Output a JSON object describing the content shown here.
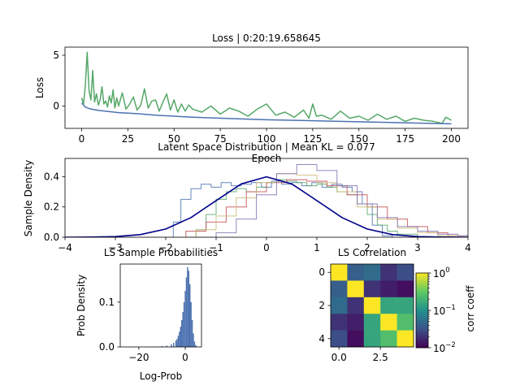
{
  "chart_data": [
    {
      "type": "line",
      "title": "Loss | 0:20:19.658645",
      "xlabel": "Epoch",
      "ylabel": "Loss",
      "xlim": [
        -9,
        209
      ],
      "ylim": [
        -2.2,
        5.8
      ],
      "xticks": [
        "0",
        "25",
        "50",
        "75",
        "100",
        "125",
        "150",
        "175",
        "200"
      ],
      "yticks": [
        "0",
        "5"
      ],
      "grid": false,
      "series": [
        {
          "color": "#4c72b0",
          "x": [
            0,
            2,
            5,
            10,
            15,
            20,
            30,
            40,
            50,
            60,
            75,
            100,
            125,
            150,
            175,
            200
          ],
          "values": [
            0.3,
            -0.1,
            -0.3,
            -0.45,
            -0.55,
            -0.65,
            -0.75,
            -0.9,
            -1.0,
            -1.1,
            -1.2,
            -1.35,
            -1.45,
            -1.55,
            -1.65,
            -1.75
          ]
        },
        {
          "color": "#55a868",
          "x": [
            0,
            1,
            2,
            3,
            4,
            5,
            6,
            7,
            8,
            9,
            10,
            11,
            12,
            13,
            14,
            15,
            16,
            17,
            18,
            19,
            20,
            22,
            24,
            26,
            28,
            30,
            32,
            34,
            36,
            38,
            40,
            42,
            44,
            46,
            48,
            50,
            52,
            54,
            56,
            58,
            60,
            65,
            70,
            75,
            80,
            85,
            90,
            95,
            100,
            105,
            110,
            115,
            120,
            123,
            125,
            127,
            130,
            135,
            140,
            145,
            150,
            155,
            160,
            165,
            170,
            175,
            180,
            185,
            190,
            195,
            197,
            200
          ],
          "values": [
            0.8,
            0.2,
            2.0,
            5.3,
            1.5,
            0.6,
            3.5,
            0.4,
            1.2,
            0.1,
            0.6,
            1.9,
            0.2,
            0.5,
            -0.1,
            1.0,
            0.3,
            1.6,
            -0.2,
            0.8,
            0.0,
            1.3,
            -0.3,
            0.2,
            0.9,
            -0.4,
            0.1,
            1.7,
            -0.2,
            0.5,
            0.6,
            -0.5,
            0.4,
            1.2,
            -0.4,
            0.6,
            -0.6,
            0.2,
            -0.5,
            0.1,
            -0.3,
            -0.6,
            0.0,
            -0.8,
            -0.2,
            -0.5,
            -1.0,
            -0.3,
            0.2,
            -0.9,
            -0.6,
            -1.1,
            -0.4,
            -1.2,
            0.2,
            -1.0,
            -0.9,
            -1.3,
            -0.5,
            -1.2,
            -1.0,
            -1.4,
            -0.8,
            -1.3,
            -1.0,
            -1.5,
            -1.2,
            -1.4,
            -1.5,
            -1.7,
            -1.1,
            -1.4
          ]
        }
      ]
    },
    {
      "type": "line",
      "title": "Latent Space Distribution | Mean KL = 0.077",
      "xlabel": "",
      "ylabel": "Sample Density",
      "xlim": [
        -4,
        4
      ],
      "ylim": [
        0,
        0.52
      ],
      "xticks": [
        "−4",
        "−3",
        "−2",
        "−1",
        "0",
        "1",
        "2",
        "3",
        "4"
      ],
      "yticks": [
        "0.0",
        "0.2",
        "0.4"
      ],
      "grid": false,
      "series": [
        {
          "color": "#4c72b0",
          "style": "step",
          "x": [
            -4,
            -2.0,
            -1.85,
            -1.7,
            -1.5,
            -1.3,
            -1.1,
            -0.9,
            -0.7,
            -0.5,
            -0.3,
            -0.1,
            0.1,
            0.3,
            0.5,
            0.7,
            0.9,
            1.1,
            1.3,
            1.5,
            1.7,
            1.9,
            2.1,
            2.3,
            2.5,
            4
          ],
          "values": [
            0,
            0,
            0.1,
            0.25,
            0.32,
            0.35,
            0.33,
            0.36,
            0.34,
            0.35,
            0.36,
            0.33,
            0.37,
            0.35,
            0.36,
            0.34,
            0.36,
            0.33,
            0.35,
            0.33,
            0.3,
            0.22,
            0.08,
            0.01,
            0,
            0
          ]
        },
        {
          "color": "#55a868",
          "style": "step",
          "x": [
            -4,
            -1.6,
            -1.4,
            -1.2,
            -1.0,
            -0.8,
            -0.6,
            -0.4,
            -0.2,
            0,
            0.2,
            0.4,
            0.6,
            0.8,
            1.0,
            1.2,
            1.4,
            1.6,
            1.8,
            2.0,
            2.2,
            2.4,
            2.6,
            3.0,
            4
          ],
          "values": [
            0,
            0,
            0.05,
            0.15,
            0.25,
            0.3,
            0.32,
            0.3,
            0.33,
            0.36,
            0.38,
            0.37,
            0.36,
            0.34,
            0.35,
            0.33,
            0.3,
            0.28,
            0.22,
            0.15,
            0.08,
            0.04,
            0.02,
            0,
            0
          ]
        },
        {
          "color": "#c44e52",
          "style": "step",
          "x": [
            -4,
            -2.0,
            -1.6,
            -1.2,
            -0.8,
            -0.4,
            0,
            0.4,
            0.8,
            1.2,
            1.6,
            2.0,
            2.4,
            2.8,
            3.2,
            3.6,
            4
          ],
          "values": [
            0,
            0,
            0.04,
            0.1,
            0.2,
            0.3,
            0.36,
            0.38,
            0.37,
            0.34,
            0.28,
            0.2,
            0.12,
            0.07,
            0.03,
            0.01,
            0
          ]
        },
        {
          "color": "#ccb974",
          "style": "step",
          "x": [
            -4,
            -1.8,
            -1.4,
            -1.0,
            -0.6,
            -0.2,
            0.2,
            0.6,
            1.0,
            1.4,
            1.8,
            2.2,
            2.6,
            3.0,
            3.4,
            4
          ],
          "values": [
            0,
            0,
            0.05,
            0.14,
            0.26,
            0.36,
            0.42,
            0.41,
            0.36,
            0.3,
            0.2,
            0.12,
            0.06,
            0.03,
            0.01,
            0
          ]
        },
        {
          "color": "#8172b2",
          "style": "step",
          "x": [
            -4,
            -1.4,
            -1.0,
            -0.6,
            -0.2,
            0.2,
            0.6,
            1.0,
            1.4,
            1.8,
            2.2,
            2.6,
            3.0,
            3.4,
            3.8,
            4
          ],
          "values": [
            0,
            0,
            0.03,
            0.12,
            0.28,
            0.42,
            0.48,
            0.44,
            0.34,
            0.22,
            0.13,
            0.07,
            0.04,
            0.02,
            0.01,
            0
          ]
        },
        {
          "color": "#00008b",
          "style": "line",
          "x": [
            -4,
            -3.5,
            -3,
            -2.5,
            -2,
            -1.5,
            -1,
            -0.5,
            0,
            0.5,
            1,
            1.5,
            2,
            2.5,
            3,
            3.5,
            4
          ],
          "values": [
            0.0001,
            0.0009,
            0.0044,
            0.0175,
            0.054,
            0.1295,
            0.242,
            0.352,
            0.3989,
            0.352,
            0.242,
            0.1295,
            0.054,
            0.0175,
            0.0044,
            0.0009,
            0.0001
          ]
        }
      ]
    },
    {
      "type": "bar",
      "title": "LS Sample Probabilities",
      "xlabel": "Log-Prob",
      "ylabel": "Prob Density",
      "xlim": [
        -28,
        7
      ],
      "ylim": [
        0,
        0.185
      ],
      "xticks": [
        "−20",
        "0"
      ],
      "yticks": [
        "0.0",
        "0.1"
      ],
      "color": "#4c72b0",
      "bin_width": 0.5,
      "x": [
        -12,
        -10,
        -8,
        -6,
        -5,
        -4,
        -3.5,
        -3,
        -2.5,
        -2,
        -1.5,
        -1,
        -0.5,
        0,
        0.5,
        1,
        1.5,
        2,
        2.5,
        3,
        3.5,
        4,
        4.5,
        5
      ],
      "values": [
        0.001,
        0.002,
        0.003,
        0.006,
        0.009,
        0.014,
        0.018,
        0.025,
        0.034,
        0.045,
        0.06,
        0.078,
        0.1,
        0.125,
        0.155,
        0.178,
        0.17,
        0.14,
        0.1,
        0.06,
        0.03,
        0.012,
        0.004,
        0.001
      ]
    },
    {
      "type": "heatmap",
      "title": "LS Correlation",
      "xticks": [
        "0.0",
        "2.5"
      ],
      "yticks": [
        "0",
        "2",
        "4"
      ],
      "colorbar_label": "corr coeff",
      "colorbar_scale": "log",
      "colorbar_ticks": [
        "10",
        "10",
        "10"
      ],
      "colorbar_exponents": [
        "0",
        "−1",
        "−2"
      ],
      "vmin": 0.01,
      "vmax": 1,
      "colormap": "viridis",
      "matrix": [
        [
          1.0,
          0.04,
          0.05,
          0.02,
          0.03
        ],
        [
          0.04,
          1.0,
          0.02,
          0.015,
          0.012
        ],
        [
          0.05,
          0.02,
          1.0,
          0.15,
          0.15
        ],
        [
          0.02,
          0.015,
          0.15,
          1.0,
          0.25
        ],
        [
          0.03,
          0.012,
          0.15,
          0.25,
          1.0
        ]
      ]
    }
  ]
}
